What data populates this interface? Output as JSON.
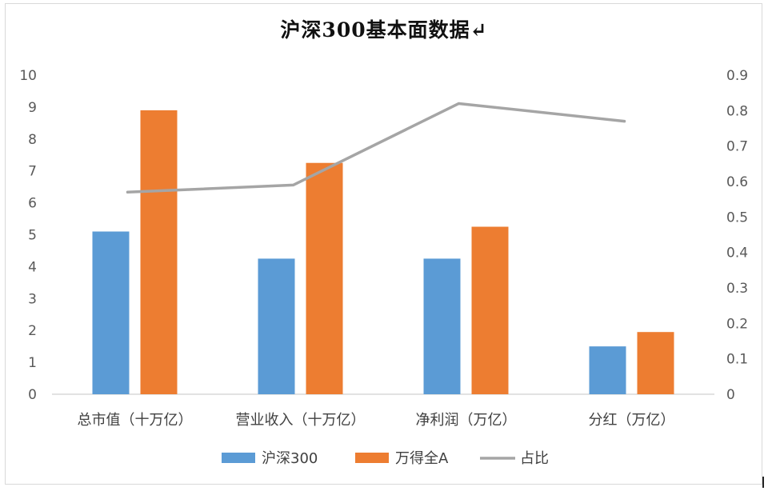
{
  "title": "沪深300基本面数据↵",
  "colors": {
    "series1": "#5b9bd5",
    "series2": "#ed7d31",
    "line": "#a5a5a5",
    "axis": "#d9d9d9"
  },
  "chart_data": {
    "type": "bar",
    "title": "沪深300基本面数据↵",
    "categories": [
      "总市值（十万亿）",
      "营业收入（十万亿）",
      "净利润（万亿）",
      "分红（万亿）"
    ],
    "series": [
      {
        "name": "沪深300",
        "type": "bar",
        "axis": "left",
        "values": [
          5.1,
          4.25,
          4.25,
          1.5
        ]
      },
      {
        "name": "万得全A",
        "type": "bar",
        "axis": "left",
        "values": [
          8.9,
          7.25,
          5.25,
          1.95
        ]
      },
      {
        "name": "占比",
        "type": "line",
        "axis": "right",
        "values": [
          0.57,
          0.59,
          0.82,
          0.77
        ]
      }
    ],
    "y_left": {
      "min": 0,
      "max": 10,
      "ticks": [
        "0",
        "1",
        "2",
        "3",
        "4",
        "5",
        "6",
        "7",
        "8",
        "9",
        "10"
      ]
    },
    "y_right": {
      "min": 0,
      "max": 0.9,
      "ticks": [
        "0",
        "0.1",
        "0.2",
        "0.3",
        "0.4",
        "0.5",
        "0.6",
        "0.7",
        "0.8",
        "0.9"
      ]
    },
    "grid": false,
    "legend_position": "bottom"
  }
}
